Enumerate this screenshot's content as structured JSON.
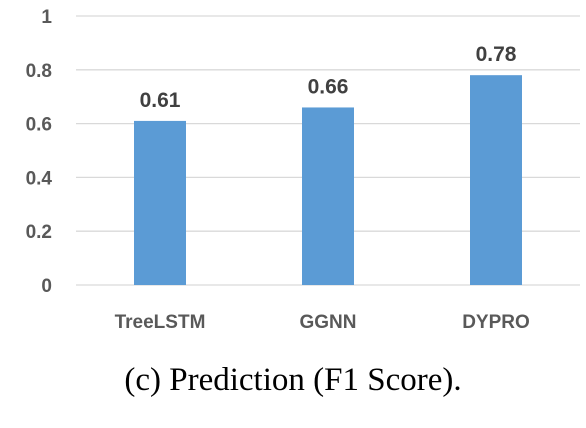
{
  "caption": "(c) Prediction (F1 Score).",
  "chart_data": {
    "type": "bar",
    "categories": [
      "TreeLSTM",
      "GGNN",
      "DYPRO"
    ],
    "values": [
      0.61,
      0.66,
      0.78
    ],
    "value_labels": [
      "0.61",
      "0.66",
      "0.78"
    ],
    "yticks": [
      0,
      0.2,
      0.4,
      0.6,
      0.8,
      1
    ],
    "ytick_labels": [
      "0",
      "0.2",
      "0.4",
      "0.6",
      "0.8",
      "1"
    ],
    "ylim": [
      0,
      1
    ],
    "grid": true,
    "title": "",
    "xlabel": "",
    "ylabel": "",
    "bar_color": "#5b9bd5",
    "grid_color": "#d9d9d9"
  }
}
